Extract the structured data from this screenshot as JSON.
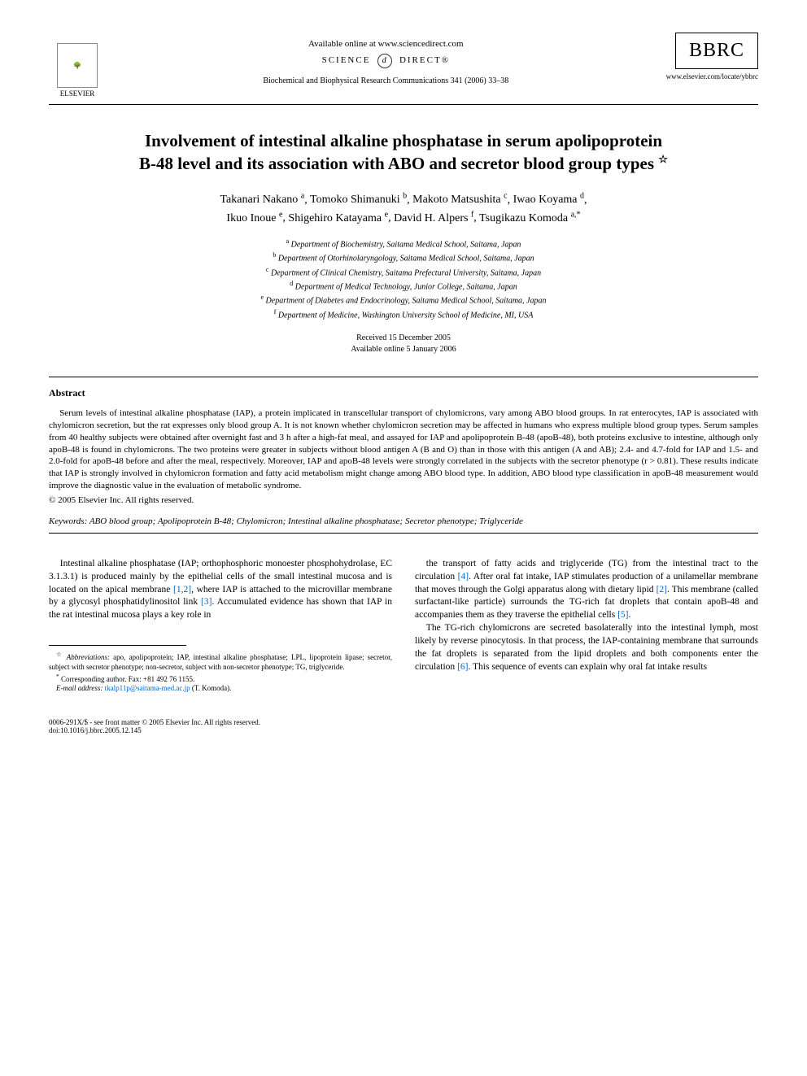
{
  "header": {
    "elsevier_label": "ELSEVIER",
    "available_online": "Available online at www.sciencedirect.com",
    "science_direct_left": "SCIENCE",
    "science_direct_right": "DIRECT®",
    "sd_d": "d",
    "journal_citation": "Biochemical and Biophysical Research Communications 341 (2006) 33–38",
    "bbrc": "BBRC",
    "journal_url": "www.elsevier.com/locate/ybbrc"
  },
  "title": {
    "line1": "Involvement of intestinal alkaline phosphatase in serum apolipoprotein",
    "line2": "B-48 level and its association with ABO and secretor blood group types",
    "star": "☆"
  },
  "authors": {
    "line1_parts": [
      {
        "name": "Takanari Nakano",
        "sup": "a"
      },
      {
        "name": "Tomoko Shimanuki",
        "sup": "b"
      },
      {
        "name": "Makoto Matsushita",
        "sup": "c"
      },
      {
        "name": "Iwao Koyama",
        "sup": "d"
      }
    ],
    "line2_parts": [
      {
        "name": "Ikuo Inoue",
        "sup": "e"
      },
      {
        "name": "Shigehiro Katayama",
        "sup": "e"
      },
      {
        "name": "David H. Alpers",
        "sup": "f"
      },
      {
        "name": "Tsugikazu Komoda",
        "sup": "a,*"
      }
    ]
  },
  "affiliations": [
    {
      "sup": "a",
      "text": "Department of Biochemistry, Saitama Medical School, Saitama, Japan"
    },
    {
      "sup": "b",
      "text": "Department of Otorhinolaryngology, Saitama Medical School, Saitama, Japan"
    },
    {
      "sup": "c",
      "text": "Department of Clinical Chemistry, Saitama Prefectural University, Saitama, Japan"
    },
    {
      "sup": "d",
      "text": "Department of Medical Technology, Junior College, Saitama, Japan"
    },
    {
      "sup": "e",
      "text": "Department of Diabetes and Endocrinology, Saitama Medical School, Saitama, Japan"
    },
    {
      "sup": "f",
      "text": "Department of Medicine, Washington University School of Medicine, MI, USA"
    }
  ],
  "dates": {
    "received": "Received 15 December 2005",
    "online": "Available online 5 January 2006"
  },
  "abstract": {
    "heading": "Abstract",
    "text": "Serum levels of intestinal alkaline phosphatase (IAP), a protein implicated in transcellular transport of chylomicrons, vary among ABO blood groups. In rat enterocytes, IAP is associated with chylomicron secretion, but the rat expresses only blood group A. It is not known whether chylomicron secretion may be affected in humans who express multiple blood group types. Serum samples from 40 healthy subjects were obtained after overnight fast and 3 h after a high-fat meal, and assayed for IAP and apolipoprotein B-48 (apoB-48), both proteins exclusive to intestine, although only apoB-48 is found in chylomicrons. The two proteins were greater in subjects without blood antigen A (B and O) than in those with this antigen (A and AB); 2.4- and 4.7-fold for IAP and 1.5- and 2.0-fold for apoB-48 before and after the meal, respectively. Moreover, IAP and apoB-48 levels were strongly correlated in the subjects with the secretor phenotype (r > 0.81). These results indicate that IAP is strongly involved in chylomicron formation and fatty acid metabolism might change among ABO blood type. In addition, ABO blood type classification in apoB-48 measurement would improve the diagnostic value in the evaluation of metabolic syndrome.",
    "copyright": "© 2005 Elsevier Inc. All rights reserved."
  },
  "keywords": {
    "label": "Keywords:",
    "text": "ABO blood group; Apolipoprotein B-48; Chylomicron; Intestinal alkaline phosphatase; Secretor phenotype; Triglyceride"
  },
  "body": {
    "left_para": "Intestinal alkaline phosphatase (IAP; orthophosphoric monoester phosphohydrolase, EC 3.1.3.1) is produced mainly by the epithelial cells of the small intestinal mucosa and is located on the apical membrane [1,2], where IAP is attached to the microvillar membrane by a glycosyl phosphatidylinositol link [3]. Accumulated evidence has shown that IAP in the rat intestinal mucosa plays a key role in",
    "right_para1": "the transport of fatty acids and triglyceride (TG) from the intestinal tract to the circulation [4]. After oral fat intake, IAP stimulates production of a unilamellar membrane that moves through the Golgi apparatus along with dietary lipid [2]. This membrane (called surfactant-like particle) surrounds the TG-rich fat droplets that contain apoB-48 and accompanies them as they traverse the epithelial cells [5].",
    "right_para2": "The TG-rich chylomicrons are secreted basolaterally into the intestinal lymph, most likely by reverse pinocytosis. In that process, the IAP-containing membrane that surrounds the fat droplets is separated from the lipid droplets and both components enter the circulation [6]. This sequence of events can explain why oral fat intake results"
  },
  "footnotes": {
    "abbrev_label": "Abbreviations:",
    "abbrev_text": "apo, apolipoprotein; IAP, intestinal alkaline phosphatase; LPL, lipoprotein lipase; secretor, subject with secretor phenotype; non-secretor, subject with non-secretor phenotype; TG, triglyceride.",
    "corresponding": "Corresponding author. Fax: +81 492 76 1155.",
    "email_label": "E-mail address:",
    "email": "tkalp11p@saitama-med.ac.jp",
    "email_suffix": "(T. Komoda)."
  },
  "footer": {
    "left_line1": "0006-291X/$ - see front matter © 2005 Elsevier Inc. All rights reserved.",
    "left_line2": "doi:10.1016/j.bbrc.2005.12.145"
  },
  "colors": {
    "citation": "#0066cc",
    "text": "#000000",
    "background": "#ffffff"
  }
}
